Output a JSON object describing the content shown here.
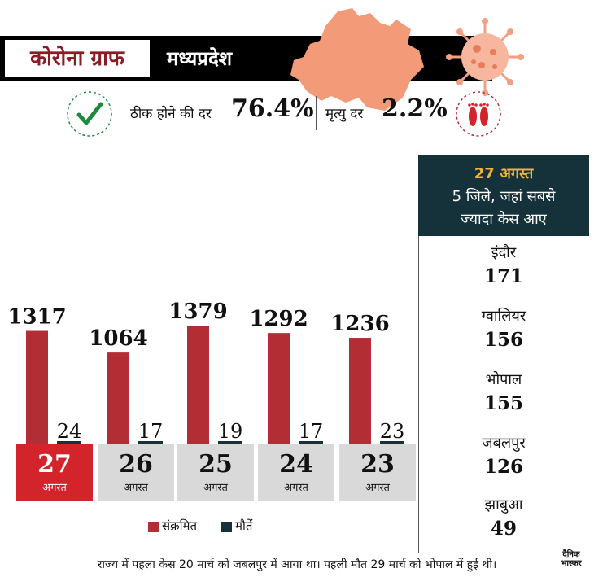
{
  "header": {
    "title": "कोरोना ग्राफ",
    "state": "मध्यप्रदेश"
  },
  "stats": {
    "recovery_label": "ठीक होने की दर",
    "recovery_value": "76.4%",
    "death_label": "मृत्यु दर",
    "death_value": "2.2%"
  },
  "side_panel": {
    "date": "27 अगस्त",
    "line1": "5 जिले, जहां सबसे",
    "line2": "ज्यादा केस आए",
    "districts": [
      {
        "name": "इंदौर",
        "value": "171"
      },
      {
        "name": "ग्वालियर",
        "value": "156"
      },
      {
        "name": "भोपाल",
        "value": "155"
      },
      {
        "name": "जबलपुर",
        "value": "126"
      },
      {
        "name": "झाबुआ",
        "value": "49"
      }
    ]
  },
  "chart_data": {
    "type": "bar",
    "categories": [
      "27",
      "26",
      "25",
      "24",
      "23"
    ],
    "month_label": "अगस्त",
    "series": [
      {
        "name": "संक्रमित",
        "values": [
          1317,
          1064,
          1379,
          1292,
          1236
        ],
        "color": "#b22e34"
      },
      {
        "name": "मौतें",
        "values": [
          24,
          17,
          19,
          17,
          23
        ],
        "color": "#15323b"
      }
    ],
    "legend_position": "bottom",
    "grid": false
  },
  "footer": {
    "note": "राज्य में पहला केस 20 मार्च को जबलपुर में आया था। पहली मौत 29 मार्च को भोपाल में हुई थी।"
  },
  "logo": {
    "line1": "दैनिक",
    "line2": "भास्कर"
  },
  "colors": {
    "header_bg": "#000000",
    "title_text": "#8b1c24",
    "map": "#f39a78",
    "side_header_bg": "#15323b",
    "active_date": "#d4242b",
    "inactive_date": "#d9d9da",
    "check": "#1e8a3c"
  }
}
